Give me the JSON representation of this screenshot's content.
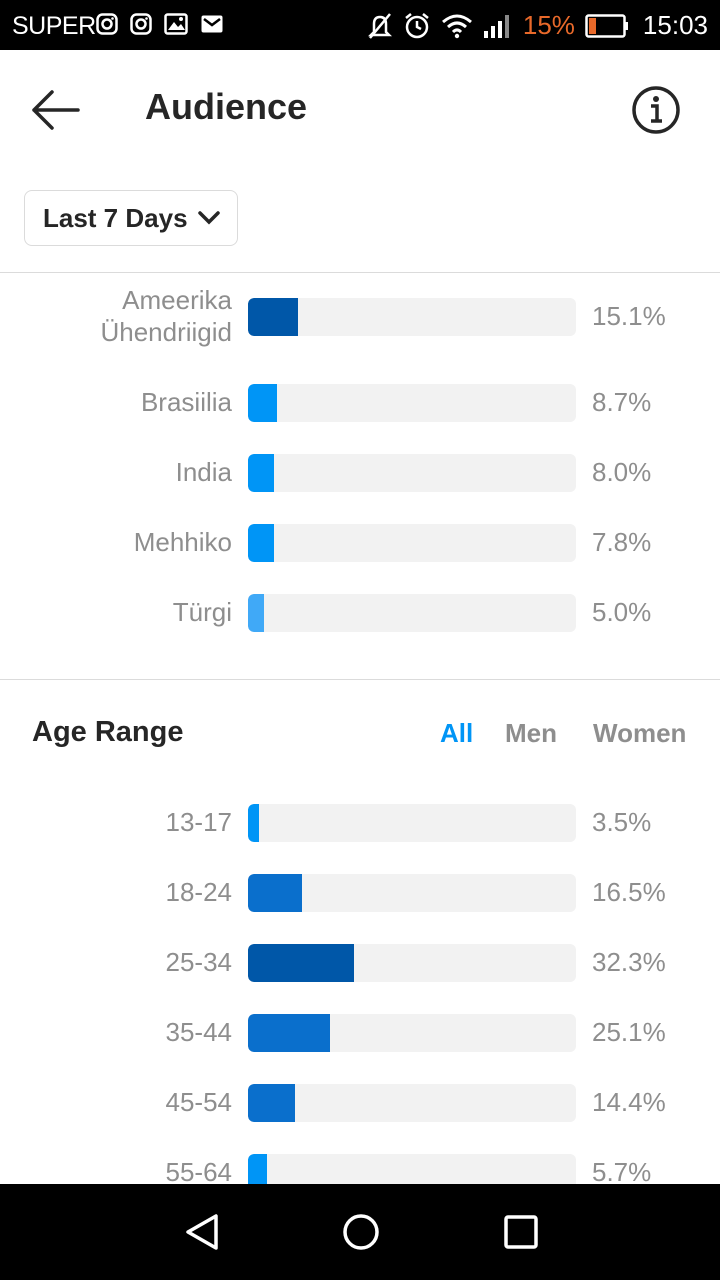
{
  "status_bar": {
    "carrier": "SUPER",
    "battery_percent": "15%",
    "time": "15:03",
    "battery_color": "#e8692a"
  },
  "header": {
    "title": "Audience",
    "back_icon": "arrow-left-icon",
    "info_icon": "info-icon"
  },
  "date_filter": {
    "label": "Last 7 Days",
    "icon": "chevron-down-icon"
  },
  "top_locations": [
    {
      "label": "Ameerika\nÜhendriigid",
      "percent": "15.1%",
      "value": 15.1,
      "color": "#0057a8"
    },
    {
      "label": "Brasiilia",
      "percent": "8.7%",
      "value": 8.7,
      "color": "#0095f6"
    },
    {
      "label": "India",
      "percent": "8.0%",
      "value": 8.0,
      "color": "#0095f6"
    },
    {
      "label": "Mehhiko",
      "percent": "7.8%",
      "value": 7.8,
      "color": "#0095f6"
    },
    {
      "label": "Türgi",
      "percent": "5.0%",
      "value": 5.0,
      "color": "#40a9f7"
    }
  ],
  "age_range": {
    "title": "Age Range",
    "tabs": [
      {
        "label": "All",
        "active": true
      },
      {
        "label": "Men",
        "active": false
      },
      {
        "label": "Women",
        "active": false
      }
    ],
    "rows": [
      {
        "label": "13-17",
        "percent": "3.5%",
        "value": 3.5,
        "color": "#0095f6"
      },
      {
        "label": "18-24",
        "percent": "16.5%",
        "value": 16.5,
        "color": "#0a6fcc"
      },
      {
        "label": "25-34",
        "percent": "32.3%",
        "value": 32.3,
        "color": "#0057a8"
      },
      {
        "label": "35-44",
        "percent": "25.1%",
        "value": 25.1,
        "color": "#0a6fcc"
      },
      {
        "label": "45-54",
        "percent": "14.4%",
        "value": 14.4,
        "color": "#0a6fcc"
      },
      {
        "label": "55-64",
        "percent": "5.7%",
        "value": 5.7,
        "color": "#0095f6"
      }
    ]
  },
  "accent_color": "#0095f6",
  "nav": {
    "back_icon": "triangle-back-icon",
    "home_icon": "circle-home-icon",
    "recents_icon": "square-recents-icon"
  }
}
